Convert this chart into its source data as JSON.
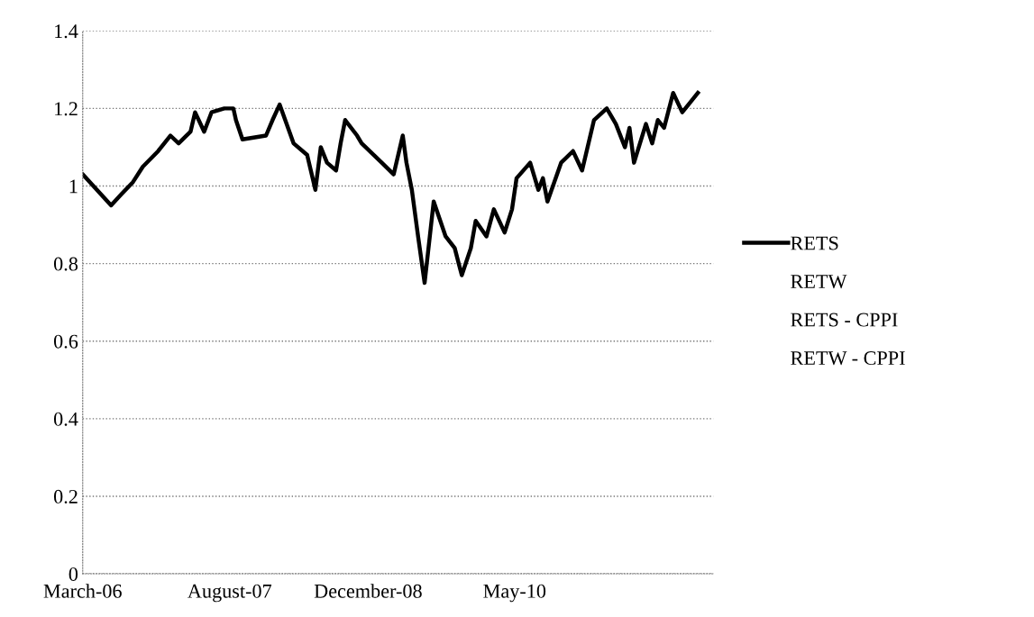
{
  "chart_data": {
    "type": "line",
    "x": [
      "2006-03-01",
      "2006-06-09",
      "2006-07-17",
      "2006-08-25",
      "2006-09-29",
      "2006-11-22",
      "2007-01-04",
      "2007-02-02",
      "2007-03-16",
      "2007-04-01",
      "2007-05-03",
      "2007-05-29",
      "2007-07-13",
      "2007-08-14",
      "2007-08-23",
      "2007-09-15",
      "2007-12-07",
      "2007-12-30",
      "2008-01-24",
      "2008-03-13",
      "2008-04-30",
      "2008-05-29",
      "2008-06-17",
      "2008-07-09",
      "2008-08-10",
      "2008-08-26",
      "2008-09-11",
      "2008-10-23",
      "2008-11-08",
      "2009-01-18",
      "2009-03-01",
      "2009-04-02",
      "2009-04-15",
      "2009-05-04",
      "2009-05-26",
      "2009-06-18",
      "2009-07-20",
      "2009-08-31",
      "2009-10-02",
      "2009-10-27",
      "2009-11-28",
      "2009-12-15",
      "2010-01-22",
      "2010-02-17",
      "2010-03-27",
      "2010-04-22",
      "2010-05-08",
      "2010-06-25",
      "2010-07-24",
      "2010-08-09",
      "2010-08-25",
      "2010-10-12",
      "2010-11-23",
      "2010-12-25",
      "2011-02-05",
      "2011-03-22",
      "2011-04-23",
      "2011-05-25",
      "2011-06-10",
      "2011-06-26",
      "2011-08-07",
      "2011-08-29",
      "2011-09-18",
      "2011-10-10",
      "2011-11-11",
      "2011-12-13",
      "2012-02-06"
    ],
    "series": [
      {
        "name": "RETS",
        "color": "#000000",
        "values": [
          1.03,
          0.95,
          0.98,
          1.01,
          1.05,
          1.09,
          1.13,
          1.11,
          1.14,
          1.19,
          1.14,
          1.19,
          1.2,
          1.2,
          1.17,
          1.12,
          1.13,
          1.17,
          1.21,
          1.11,
          1.08,
          0.99,
          1.1,
          1.06,
          1.04,
          1.11,
          1.17,
          1.13,
          1.11,
          1.06,
          1.03,
          1.13,
          1.06,
          0.99,
          0.87,
          0.75,
          0.96,
          0.87,
          0.84,
          0.77,
          0.84,
          0.91,
          0.87,
          0.94,
          0.88,
          0.94,
          1.02,
          1.06,
          0.99,
          1.02,
          0.96,
          1.06,
          1.09,
          1.04,
          1.17,
          1.2,
          1.16,
          1.1,
          1.15,
          1.06,
          1.16,
          1.11,
          1.17,
          1.15,
          1.24,
          1.19,
          1.24
        ]
      }
    ],
    "annotations": [
      "RETW",
      "RETS - CPPI",
      "RETW - CPPI"
    ],
    "xlim": [
      "2006-03-01",
      "2012-04-01"
    ],
    "xticks": [
      {
        "value": "2006-03-01",
        "label": "March-06"
      },
      {
        "value": "2007-08-01",
        "label": "August-07"
      },
      {
        "value": "2008-12-01",
        "label": "December-08"
      },
      {
        "value": "2010-05-01",
        "label": "May-10"
      }
    ],
    "ylim": [
      0,
      1.4
    ],
    "yticks": [
      0,
      0.2,
      0.4,
      0.6,
      0.8,
      1,
      1.2,
      1.4
    ],
    "grid": "y",
    "legend": "right",
    "line_style": "solid",
    "marker": "none"
  }
}
